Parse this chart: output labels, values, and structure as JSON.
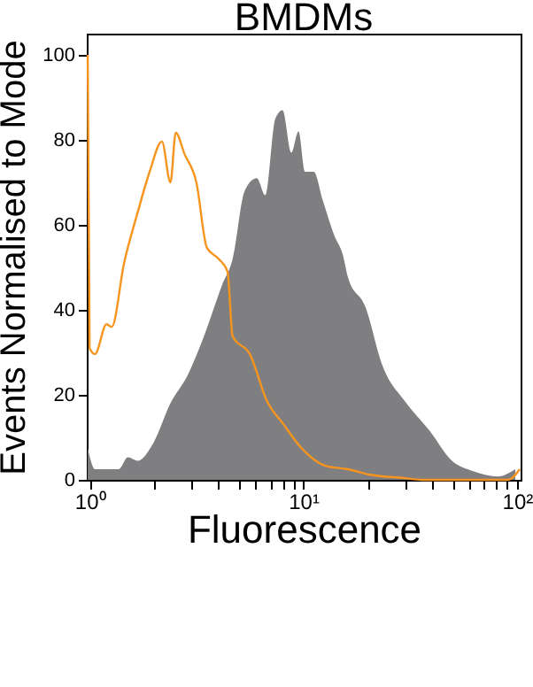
{
  "chart_data": {
    "type": "area",
    "title": "BMDMs",
    "xlabel": "Fluorescence",
    "ylabel": "Events Normalised to Mode",
    "log": "x",
    "grid": false,
    "xlim": [
      0.97,
      104
    ],
    "ylim": [
      0,
      105
    ],
    "xticks": [
      {
        "value": 1,
        "label": "10⁰"
      },
      {
        "value": 2,
        "label": null
      },
      {
        "value": 3,
        "label": null
      },
      {
        "value": 4,
        "label": null
      },
      {
        "value": 5,
        "label": null
      },
      {
        "value": 6,
        "label": null
      },
      {
        "value": 7,
        "label": null
      },
      {
        "value": 8,
        "label": null
      },
      {
        "value": 9,
        "label": null
      },
      {
        "value": 10,
        "label": "10¹"
      },
      {
        "value": 20,
        "label": null
      },
      {
        "value": 30,
        "label": null
      },
      {
        "value": 40,
        "label": null
      },
      {
        "value": 50,
        "label": null
      },
      {
        "value": 60,
        "label": null
      },
      {
        "value": 70,
        "label": null
      },
      {
        "value": 80,
        "label": null
      },
      {
        "value": 90,
        "label": null
      },
      {
        "value": 100,
        "label": "10²"
      }
    ],
    "yticks": [
      0,
      20,
      40,
      60,
      80,
      100
    ],
    "series": [
      {
        "color": "#7f7f82",
        "x": [
          0.98,
          1.06,
          1.37,
          1.51,
          1.68,
          1.99,
          2.39,
          2.88,
          3.47,
          4.18,
          4.67,
          5.32,
          6.06,
          6.65,
          7.4,
          8.0,
          8.8,
          9.5,
          10.2,
          11.2,
          12.3,
          13.97,
          15.3,
          16.2,
          19.5,
          23.5,
          29.9,
          38.8,
          49.4,
          62.9,
          81.5,
          98.2
        ],
        "values": [
          7.5,
          2.5,
          2.5,
          5.3,
          4.5,
          8.7,
          18,
          24.7,
          34.5,
          46,
          52,
          68,
          71,
          67,
          85,
          87,
          77,
          82,
          72.5,
          72.5,
          66,
          57.5,
          53,
          47.6,
          40.8,
          26.8,
          18.5,
          11.7,
          4.6,
          2,
          0.8,
          2.5
        ]
      },
      {
        "type": "line",
        "color": "#f7941d",
        "x": [
          0.98,
          1.0,
          1.06,
          1.2,
          1.27,
          1.45,
          1.68,
          1.91,
          2.18,
          2.39,
          2.53,
          2.78,
          3.16,
          3.54,
          4.02,
          4.42,
          4.67,
          5.62,
          6.77,
          8.1,
          9.8,
          12.7,
          16.2,
          20.6,
          29.9,
          35.9,
          91,
          103
        ],
        "values": [
          100,
          31,
          29.6,
          36.6,
          36,
          51,
          63,
          72.5,
          79.6,
          70,
          81.7,
          76.7,
          70,
          54.6,
          52,
          49,
          33.8,
          29.6,
          18.5,
          13,
          7.5,
          3.3,
          2.5,
          1.2,
          0.4,
          0,
          0,
          2.5
        ]
      }
    ]
  }
}
